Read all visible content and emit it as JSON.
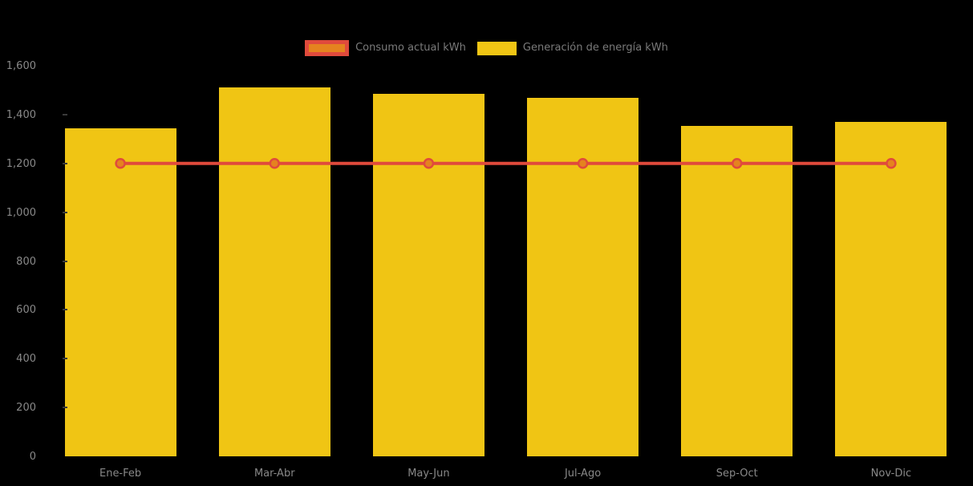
{
  "chart_data": {
    "type": "bar",
    "title": "",
    "categories": [
      "Ene-Feb",
      "Mar-Abr",
      "May-Jun",
      "Jul-Ago",
      "Sep-Oct",
      "Nov-Dic"
    ],
    "series": [
      {
        "name": "Consumo actual kWh",
        "type": "line",
        "values": [
          1200,
          1200,
          1200,
          1200,
          1200,
          1200
        ],
        "line_color": "#E04A3C",
        "marker_fill": "#E5831F",
        "marker_stroke": "#E04A3C"
      },
      {
        "name": "Generación de energía kWh",
        "type": "bar",
        "values": [
          1345,
          1510,
          1485,
          1470,
          1355,
          1370
        ],
        "color": "#F0C514"
      }
    ],
    "xlabel": "",
    "ylabel": "",
    "ylim": [
      0,
      1600
    ],
    "ytick_step": 200,
    "ytick_labels": [
      "0",
      "200",
      "400",
      "600",
      "800",
      "1,000",
      "1,200",
      "1,400",
      "1,600"
    ],
    "grid": false,
    "legend_position": "top",
    "background_color": "#000000",
    "axis_label_color": "#888888",
    "legend_text_color": "#7A7A7A"
  }
}
